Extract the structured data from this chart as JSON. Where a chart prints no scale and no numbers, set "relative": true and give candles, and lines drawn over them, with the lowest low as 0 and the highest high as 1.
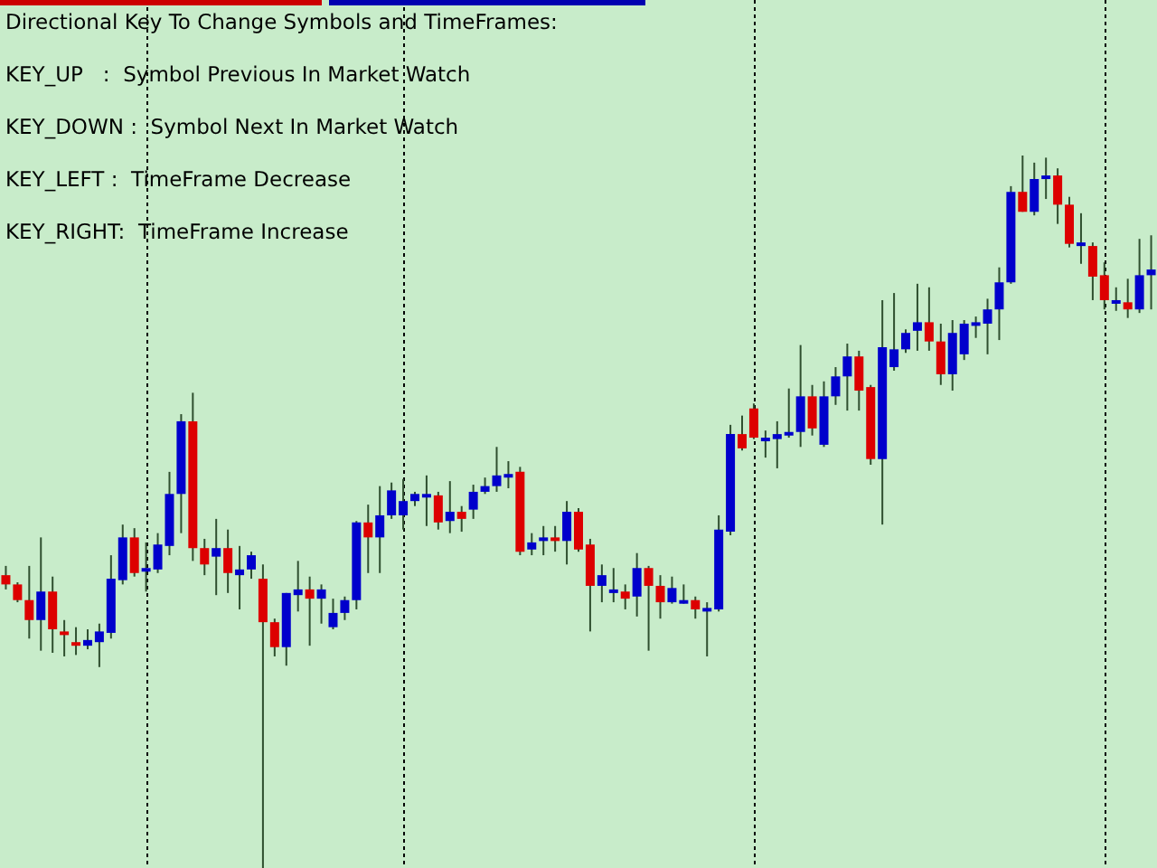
{
  "chart_data": {
    "type": "candlestick",
    "relative": true,
    "grid": "x",
    "annotations": [
      "Directional Key To Change Symbols and TimeFrames:",
      "KEY_UP   :  Symbol Previous In Market Watch",
      "KEY_DOWN :  Symbol Next In Market Watch",
      "KEY_LEFT :  TimeFrame Decrease",
      "KEY_RIGHT:  TimeFrame Increase"
    ],
    "categories": [
      null,
      null,
      null,
      null,
      null,
      null,
      null,
      null,
      null,
      null,
      null,
      null,
      null,
      null,
      null,
      null,
      null,
      null,
      null,
      null,
      null,
      null,
      null,
      null,
      null,
      null,
      null,
      null,
      null,
      null,
      null,
      null,
      null,
      null,
      null,
      null,
      null,
      null,
      null,
      null,
      null,
      null,
      null,
      null,
      null,
      null,
      null,
      null,
      null,
      null,
      null,
      null,
      null,
      null,
      null,
      null,
      null,
      null,
      null,
      null,
      null,
      null,
      null,
      null,
      null,
      null,
      null,
      null,
      null,
      null,
      null,
      null,
      null,
      null,
      null,
      null,
      null,
      null,
      null,
      null,
      null,
      null,
      null,
      null,
      null,
      null,
      null,
      null,
      null,
      null,
      null,
      null,
      null,
      null,
      null,
      null,
      null,
      null,
      null
    ],
    "ohlc": [
      [
        0.411,
        0.424,
        0.391,
        0.398
      ],
      [
        0.398,
        0.401,
        0.373,
        0.376
      ],
      [
        0.376,
        0.424,
        0.322,
        0.348
      ],
      [
        0.348,
        0.464,
        0.305,
        0.388
      ],
      [
        0.388,
        0.409,
        0.302,
        0.335
      ],
      [
        0.332,
        0.348,
        0.297,
        0.327
      ],
      [
        0.317,
        0.338,
        0.299,
        0.312
      ],
      [
        0.312,
        0.335,
        0.307,
        0.32
      ],
      [
        0.317,
        0.343,
        0.282,
        0.332
      ],
      [
        0.33,
        0.439,
        0.322,
        0.406
      ],
      [
        0.404,
        0.482,
        0.398,
        0.464
      ],
      [
        0.464,
        0.477,
        0.409,
        0.414
      ],
      [
        0.416,
        0.457,
        0.388,
        0.421
      ],
      [
        0.419,
        0.47,
        0.414,
        0.454
      ],
      [
        0.452,
        0.556,
        0.439,
        0.525
      ],
      [
        0.525,
        0.637,
        0.47,
        0.627
      ],
      [
        0.627,
        0.667,
        0.431,
        0.449
      ],
      [
        0.449,
        0.462,
        0.411,
        0.426
      ],
      [
        0.437,
        0.49,
        0.383,
        0.449
      ],
      [
        0.449,
        0.475,
        0.386,
        0.414
      ],
      [
        0.411,
        0.452,
        0.363,
        0.419
      ],
      [
        0.419,
        0.444,
        0.406,
        0.439
      ],
      [
        0.406,
        0.426,
        0,
        0.345
      ],
      [
        0.345,
        0.35,
        0.297,
        0.31
      ],
      [
        0.31,
        0.386,
        0.284,
        0.386
      ],
      [
        0.383,
        0.431,
        0.36,
        0.391
      ],
      [
        0.391,
        0.409,
        0.312,
        0.378
      ],
      [
        0.378,
        0.398,
        0.343,
        0.391
      ],
      [
        0.338,
        0.378,
        0.335,
        0.358
      ],
      [
        0.358,
        0.381,
        0.348,
        0.376
      ],
      [
        0.376,
        0.487,
        0.363,
        0.485
      ],
      [
        0.485,
        0.51,
        0.414,
        0.464
      ],
      [
        0.464,
        0.536,
        0.414,
        0.495
      ],
      [
        0.495,
        0.541,
        0.49,
        0.53
      ],
      [
        0.495,
        0.546,
        0.475,
        0.515
      ],
      [
        0.515,
        0.528,
        0.508,
        0.525
      ],
      [
        0.523,
        0.551,
        0.48,
        0.525
      ],
      [
        0.523,
        0.528,
        0.475,
        0.485
      ],
      [
        0.487,
        0.543,
        0.47,
        0.5
      ],
      [
        0.5,
        0.508,
        0.472,
        0.49
      ],
      [
        0.503,
        0.538,
        0.49,
        0.528
      ],
      [
        0.528,
        0.548,
        0.525,
        0.536
      ],
      [
        0.536,
        0.591,
        0.528,
        0.551
      ],
      [
        0.551,
        0.571,
        0.533,
        0.553
      ],
      [
        0.556,
        0.563,
        0.439,
        0.444
      ],
      [
        0.447,
        0.47,
        0.439,
        0.457
      ],
      [
        0.459,
        0.48,
        0.439,
        0.464
      ],
      [
        0.464,
        0.48,
        0.444,
        0.459
      ],
      [
        0.459,
        0.515,
        0.426,
        0.5
      ],
      [
        0.5,
        0.505,
        0.444,
        0.447
      ],
      [
        0.454,
        0.462,
        0.332,
        0.396
      ],
      [
        0.396,
        0.426,
        0.373,
        0.411
      ],
      [
        0.388,
        0.421,
        0.373,
        0.391
      ],
      [
        0.388,
        0.398,
        0.363,
        0.378
      ],
      [
        0.381,
        0.442,
        0.353,
        0.421
      ],
      [
        0.421,
        0.424,
        0.305,
        0.396
      ],
      [
        0.396,
        0.411,
        0.35,
        0.373
      ],
      [
        0.373,
        0.409,
        0.371,
        0.393
      ],
      [
        0.371,
        0.398,
        0.371,
        0.376
      ],
      [
        0.376,
        0.381,
        0.35,
        0.363
      ],
      [
        0.363,
        0.373,
        0.297,
        0.365
      ],
      [
        0.363,
        0.495,
        0.36,
        0.475
      ],
      [
        0.472,
        0.622,
        0.467,
        0.609
      ],
      [
        0.609,
        0.635,
        0.586,
        0.589
      ],
      [
        0.645,
        0.652,
        0.602,
        0.604
      ],
      [
        0.602,
        0.614,
        0.576,
        0.604
      ],
      [
        0.602,
        0.627,
        0.561,
        0.609
      ],
      [
        0.607,
        0.673,
        0.604,
        0.612
      ],
      [
        0.612,
        0.734,
        0.591,
        0.662
      ],
      [
        0.662,
        0.678,
        0.607,
        0.617
      ],
      [
        0.594,
        0.683,
        0.591,
        0.662
      ],
      [
        0.662,
        0.703,
        0.65,
        0.69
      ],
      [
        0.69,
        0.736,
        0.642,
        0.718
      ],
      [
        0.718,
        0.726,
        0.642,
        0.67
      ],
      [
        0.675,
        0.678,
        0.566,
        0.574
      ],
      [
        0.574,
        0.797,
        0.482,
        0.731
      ],
      [
        0.703,
        0.807,
        0.698,
        0.728
      ],
      [
        0.728,
        0.756,
        0.723,
        0.751
      ],
      [
        0.754,
        0.82,
        0.726,
        0.766
      ],
      [
        0.766,
        0.815,
        0.726,
        0.739
      ],
      [
        0.739,
        0.764,
        0.678,
        0.693
      ],
      [
        0.693,
        0.769,
        0.67,
        0.751
      ],
      [
        0.721,
        0.769,
        0.713,
        0.764
      ],
      [
        0.764,
        0.774,
        0.744,
        0.766
      ],
      [
        0.764,
        0.799,
        0.721,
        0.784
      ],
      [
        0.784,
        0.843,
        0.741,
        0.822
      ],
      [
        0.822,
        0.957,
        0.82,
        0.949
      ],
      [
        0.949,
        1,
        0.921,
        0.921
      ],
      [
        0.921,
        0.99,
        0.916,
        0.967
      ],
      [
        0.967,
        0.997,
        0.939,
        0.972
      ],
      [
        0.972,
        0.982,
        0.904,
        0.931
      ],
      [
        0.931,
        0.942,
        0.871,
        0.876
      ],
      [
        0.873,
        0.919,
        0.848,
        0.878
      ],
      [
        0.873,
        0.878,
        0.797,
        0.83
      ],
      [
        0.832,
        0.85,
        0.784,
        0.797
      ],
      [
        0.794,
        0.815,
        0.782,
        0.797
      ],
      [
        0.794,
        0.827,
        0.772,
        0.784
      ],
      [
        0.784,
        0.883,
        0.779,
        0.832
      ],
      [
        0.832,
        0.888,
        0.784,
        0.84
      ]
    ],
    "colors": [
      "#dd0000",
      "#dd0000",
      "#dd0000",
      "#0000cc",
      "#dd0000",
      "#dd0000",
      "#dd0000",
      "#0000cc",
      "#0000cc",
      "#0000cc",
      "#0000cc",
      "#dd0000",
      "#0000cc",
      "#0000cc",
      "#0000cc",
      "#0000cc",
      "#dd0000",
      "#dd0000",
      "#0000cc",
      "#dd0000",
      "#0000cc",
      "#0000cc",
      "#dd0000",
      "#dd0000",
      "#0000cc",
      "#0000cc",
      "#dd0000",
      "#0000cc",
      "#0000cc",
      "#0000cc",
      "#0000cc",
      "#dd0000",
      "#0000cc",
      "#0000cc",
      "#0000cc",
      "#0000cc",
      "#0000cc",
      "#dd0000",
      "#0000cc",
      "#dd0000",
      "#0000cc",
      "#0000cc",
      "#0000cc",
      "#0000cc",
      "#dd0000",
      "#0000cc",
      "#0000cc",
      "#dd0000",
      "#0000cc",
      "#dd0000",
      "#dd0000",
      "#0000cc",
      "#0000cc",
      "#dd0000",
      "#0000cc",
      "#dd0000",
      "#dd0000",
      "#0000cc",
      "#0000cc",
      "#dd0000",
      "#0000cc",
      "#0000cc",
      "#0000cc",
      "#dd0000",
      "#dd0000",
      "#0000cc",
      "#0000cc",
      "#0000cc",
      "#0000cc",
      "#dd0000",
      "#0000cc",
      "#0000cc",
      "#0000cc",
      "#dd0000",
      "#dd0000",
      "#0000cc",
      "#0000cc",
      "#0000cc",
      "#0000cc",
      "#dd0000",
      "#dd0000",
      "#0000cc",
      "#0000cc",
      "#0000cc",
      "#0000cc",
      "#0000cc",
      "#0000cc",
      "#dd0000",
      "#0000cc",
      "#0000cc",
      "#dd0000",
      "#dd0000",
      "#0000cc",
      "#dd0000",
      "#dd0000",
      "#0000cc",
      "#dd0000",
      "#0000cc",
      "#0000cc"
    ]
  }
}
